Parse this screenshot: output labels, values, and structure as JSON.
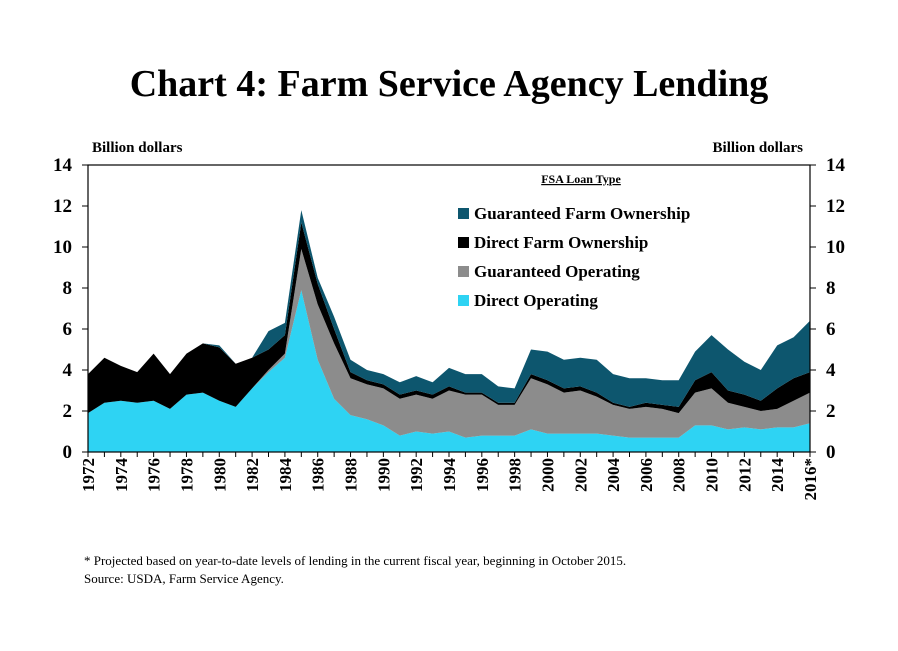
{
  "title": "Chart 4: Farm Service Agency Lending",
  "ylabel_left": "Billion dollars",
  "ylabel_right": "Billion dollars",
  "legend_title": "FSA Loan Type",
  "footnote": "* Projected based on year-to-date levels of lending in the current fiscal year, beginning in October 2015.",
  "source": "Source: USDA, Farm Service Agency.",
  "chart_data": {
    "type": "area",
    "stacked": true,
    "x": [
      1972,
      1973,
      1974,
      1975,
      1976,
      1977,
      1978,
      1979,
      1980,
      1981,
      1982,
      1983,
      1984,
      1985,
      1986,
      1987,
      1988,
      1989,
      1990,
      1991,
      1992,
      1993,
      1994,
      1995,
      1996,
      1997,
      1998,
      1999,
      2000,
      2001,
      2002,
      2003,
      2004,
      2005,
      2006,
      2007,
      2008,
      2009,
      2010,
      2011,
      2012,
      2013,
      2014,
      2015,
      2016
    ],
    "x_tick_labels": [
      "1972",
      "1974",
      "1976",
      "1978",
      "1980",
      "1982",
      "1984",
      "1986",
      "1988",
      "1990",
      "1992",
      "1994",
      "1996",
      "1998",
      "2000",
      "2002",
      "2004",
      "2006",
      "2008",
      "2010",
      "2012",
      "2014",
      "2016*"
    ],
    "ylim": [
      0,
      14
    ],
    "y_ticks": [
      "0",
      "2",
      "4",
      "6",
      "8",
      "10",
      "12",
      "14"
    ],
    "series": [
      {
        "name": "Direct Operating",
        "color": "#2ed3f3",
        "values": [
          1.9,
          2.4,
          2.5,
          2.4,
          2.5,
          2.1,
          2.8,
          2.9,
          2.5,
          2.2,
          3.1,
          3.9,
          4.6,
          7.9,
          4.5,
          2.6,
          1.8,
          1.6,
          1.3,
          0.8,
          1.0,
          0.9,
          1.0,
          0.7,
          0.8,
          0.8,
          0.8,
          1.1,
          0.9,
          0.9,
          0.9,
          0.9,
          0.8,
          0.7,
          0.7,
          0.7,
          0.7,
          1.3,
          1.3,
          1.1,
          1.2,
          1.1,
          1.2,
          1.2,
          1.4
        ]
      },
      {
        "name": "Guaranteed Operating",
        "color": "#8c8c8c",
        "values": [
          0.0,
          0.0,
          0.0,
          0.0,
          0.0,
          0.0,
          0.0,
          0.0,
          0.0,
          0.0,
          0.0,
          0.1,
          0.2,
          2.0,
          2.7,
          2.7,
          1.8,
          1.7,
          1.8,
          1.8,
          1.8,
          1.7,
          2.0,
          2.1,
          2.0,
          1.5,
          1.5,
          2.5,
          2.4,
          2.0,
          2.1,
          1.8,
          1.5,
          1.4,
          1.5,
          1.4,
          1.2,
          1.6,
          1.8,
          1.3,
          1.0,
          0.9,
          0.9,
          1.3,
          1.5
        ]
      },
      {
        "name": "Direct Farm Ownership",
        "color": "#000000",
        "values": [
          1.9,
          2.2,
          1.7,
          1.5,
          2.3,
          1.7,
          2.0,
          2.4,
          2.6,
          2.1,
          1.5,
          1.0,
          0.9,
          1.3,
          1.0,
          0.7,
          0.3,
          0.2,
          0.2,
          0.2,
          0.2,
          0.2,
          0.2,
          0.1,
          0.1,
          0.1,
          0.1,
          0.2,
          0.2,
          0.2,
          0.2,
          0.2,
          0.1,
          0.1,
          0.2,
          0.2,
          0.3,
          0.6,
          0.8,
          0.6,
          0.6,
          0.5,
          1.0,
          1.1,
          1.0
        ]
      },
      {
        "name": "Guaranteed Farm Ownership",
        "color": "#0d566e",
        "values": [
          0.0,
          0.0,
          0.0,
          0.0,
          0.0,
          0.0,
          0.0,
          0.0,
          0.1,
          0.0,
          0.0,
          0.9,
          0.6,
          0.6,
          0.3,
          0.6,
          0.6,
          0.5,
          0.5,
          0.6,
          0.7,
          0.6,
          0.9,
          0.9,
          0.9,
          0.8,
          0.7,
          1.2,
          1.4,
          1.4,
          1.4,
          1.6,
          1.4,
          1.4,
          1.2,
          1.2,
          1.3,
          1.4,
          1.8,
          2.0,
          1.6,
          1.5,
          2.1,
          2.0,
          2.5
        ]
      }
    ],
    "legend_order": [
      "Guaranteed Farm Ownership",
      "Direct Farm Ownership",
      "Guaranteed Operating",
      "Direct Operating"
    ],
    "grid": false,
    "legend_position": "upper-right inside plot"
  }
}
